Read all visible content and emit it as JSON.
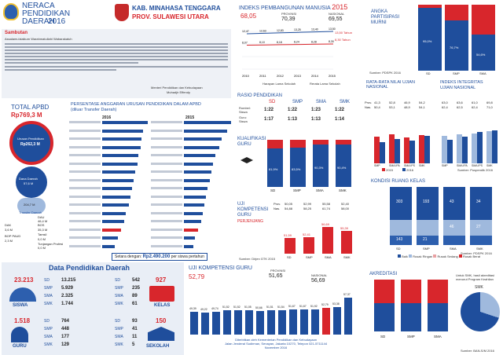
{
  "header": {
    "title_l1": "NERACA",
    "title_l2": "PENDIDIKAN",
    "title_l3": "DAERAH",
    "year": "2016",
    "region_l1": "KAB. MINAHASA TENGGARA",
    "region_l2": "PROV. SULAWESI UTARA"
  },
  "sambutan": {
    "title": "Sambutan",
    "greeting": "Assalamu'alaikum Warahmatullahi Wabarakatuh",
    "sign1": "Menteri Pendidikan dan Kebudayaan",
    "sign2": "Muhadjir Effendy"
  },
  "ipm": {
    "title": "INDEKS PEMBANGUNAN MANUSIA",
    "year": "2015",
    "kab": "68,05",
    "prov_label": "PROVINSI",
    "prov": "70,39",
    "nas_label": "NASIONAL",
    "nas": "69,55",
    "hls": "13,50 Tahun",
    "rls": "8,30 Tahun",
    "years": [
      "2010",
      "2011",
      "2012",
      "2013",
      "2014",
      "2015"
    ],
    "top": [
      "12,47",
      "12,63",
      "12,83",
      "13,25",
      "13,40",
      "13,50"
    ],
    "bot": [
      "8,07",
      "8,10",
      "8,18",
      "8,24",
      "8,28",
      "8,30"
    ],
    "leg1": "Harapan Lama Sekolah",
    "leg2": "Rerata Lama Sekolah"
  },
  "apm": {
    "title_l1": "ANGKA",
    "title_l2": "PARTISIPASI",
    "title_l3": "MURNI",
    "levels": [
      "SD",
      "SMP",
      "SMA"
    ],
    "vals": [
      "95,0%",
      "76,7%",
      "54,6%"
    ],
    "fill": [
      0.95,
      0.767,
      0.546
    ],
    "source": "Sumber: PDSPK 2016"
  },
  "apbd": {
    "title": "TOTAL APBD",
    "amount": "Rp769,3 M",
    "urusan_label": "Urusan Pendidikan",
    "urusan": "Rp262,3 M",
    "dana_daerah_label": "Dana Daerah",
    "dana_daerah": "57,6 M",
    "transfer_label": "Transfer Daerah",
    "transfer": "204,7 M",
    "rows": [
      [
        "DAU",
        "46,4 M"
      ],
      [
        "DAK",
        "3,6 M"
      ],
      [
        "BOP PAUD",
        "2,3 M"
      ],
      [
        "BOS",
        "35,3 M"
      ],
      [
        "Tamsil",
        "0,0 M"
      ],
      [
        "Tunjangan Profesi",
        "0,0 M"
      ]
    ]
  },
  "persentase": {
    "title_l1": "PERSENTASE ANGGARAN URUSAN PENDIDIKAN DALAM APBD",
    "title_l2": "(diluar Transfer Daerah)",
    "year_l": "2016",
    "year_r": "2015",
    "footer": "Setara dengan:",
    "footer_amount": "Rp2.490.200",
    "footer_per": "per siswa pertahun",
    "bars_l": [
      0.58,
      0.52,
      0.5,
      0.49,
      0.46,
      0.45,
      0.42,
      0.4,
      0.38,
      0.36,
      0.34,
      0.3,
      0.28,
      0.24,
      0.2,
      0.16
    ],
    "bars_r": [
      0.6,
      0.55,
      0.48,
      0.45,
      0.4,
      0.37,
      0.35,
      0.33,
      0.3,
      0.28,
      0.26,
      0.24,
      0.22,
      0.18,
      0.14,
      0.12
    ],
    "hl_l": 13,
    "hl_r": 13
  },
  "rasio": {
    "title": "RASIO PENDIDIKAN",
    "r1": "Rombel:",
    "r1b": "Siswa",
    "r2": "Guru:",
    "r2b": "Siswa",
    "cols": [
      "SD",
      "SMP",
      "SMA",
      "SMK"
    ],
    "row1": [
      "1:22",
      "1:22",
      "1:23",
      "1:22"
    ],
    "row2": [
      "1:17",
      "1:13",
      "1:13",
      "1:14"
    ]
  },
  "un": {
    "title": "RATA-RATA NILAI UJIAN NASIONAL",
    "cols": [
      "SMP",
      "SMA IPA",
      "SMA IPS",
      "SMK"
    ],
    "prov_label": "Prov.",
    "nas_label": "Nas.",
    "prov": [
      "41,3",
      "52,8",
      "46,9",
      "54,2"
    ],
    "nas": [
      "50,4",
      "53,1",
      "48,9",
      "54,1"
    ],
    "v2015": [
      0.57,
      0.62,
      0.55,
      0.6
    ],
    "v2016": [
      0.45,
      0.52,
      0.48,
      0.58
    ],
    "leg1": "2015",
    "leg2": "2016"
  },
  "iiun": {
    "title_l1": "INDEKS INTEGRITAS",
    "title_l2": "UJIAN NASIONAL",
    "cols": [
      "SMP",
      "SMA IPA",
      "SMA IPS",
      "SMK"
    ],
    "prov": [
      "63,0",
      "63,6",
      "61,0",
      "69,8"
    ],
    "nas": [
      "62,4",
      "62,5",
      "62,4",
      "71,0"
    ],
    "v2015": [
      0.58,
      0.62,
      0.64,
      0.68
    ],
    "v2016": [
      0.5,
      0.56,
      0.66,
      0.7
    ],
    "source": "Sumber: Puspendik 2016"
  },
  "kualifikasi": {
    "title_l1": "KUALIFIKASI",
    "title_l2": "GURU",
    "cols": [
      "SD",
      "SMP",
      "SMA",
      "SMK"
    ],
    "vals": [
      "81,9%",
      "83,5%",
      "90,3%",
      "90,4%"
    ],
    "fill": [
      0.819,
      0.835,
      0.903,
      0.904
    ]
  },
  "ukg": {
    "title_l1": "UJI",
    "title_l2": "KOMPETENSI",
    "title_l3": "GURU",
    "sub": "PERJENJANG",
    "cols": [
      "SD",
      "SMP",
      "SMA",
      "SMK"
    ],
    "prov": [
      "50,05",
      "52,99",
      "55,58",
      "52,40"
    ],
    "nas": [
      "54,88",
      "58,25",
      "61,74",
      "58,00"
    ],
    "vals": [
      "51,59",
      "52,41",
      "56,69",
      "55,39"
    ],
    "norm": [
      0.47,
      0.5,
      0.82,
      0.7
    ],
    "source": "Sumber: Dirjen GTK 2015"
  },
  "ruang": {
    "title": "KONDISI RUANG KELAS",
    "cols": [
      "SD",
      "SMP",
      "SMA",
      "SMK"
    ],
    "top": [
      "303",
      "193",
      "43",
      "34"
    ],
    "mid": [
      "",
      "",
      "46",
      "27"
    ],
    "bot": [
      "143",
      "21",
      "",
      ""
    ],
    "source": "Sumber: PDSPK 2016",
    "leg": [
      "Baik",
      "Rusak Ringan",
      "Rusak Sedang",
      "Rusak Berat"
    ]
  },
  "pendidikan": {
    "title": "Data Pendidikan Daerah",
    "siswa_total": "23.213",
    "siswa_label": "SISWA",
    "siswa": [
      [
        "SD",
        "13.215"
      ],
      [
        "SMP",
        "5.929"
      ],
      [
        "SMA",
        "2.325"
      ],
      [
        "SMK",
        "1.744"
      ]
    ],
    "kelas_total": "927",
    "kelas_label": "KELAS",
    "kelas": [
      [
        "SD",
        "542"
      ],
      [
        "SMP",
        "235"
      ],
      [
        "SMA",
        "89"
      ],
      [
        "SMK",
        "61"
      ]
    ],
    "guru_total": "1.518",
    "guru_label": "GURU",
    "guru": [
      [
        "SD",
        "764"
      ],
      [
        "SMP",
        "448"
      ],
      [
        "SMA",
        "177"
      ],
      [
        "SMK",
        "129"
      ]
    ],
    "sekolah_total": "150",
    "sekolah_label": "SEKOLAH",
    "sekolah": [
      [
        "SD",
        "93"
      ],
      [
        "SMP",
        "41"
      ],
      [
        "SMA",
        "11"
      ],
      [
        "SMK",
        "5"
      ]
    ]
  },
  "ukg2": {
    "title": "UJI KOMPETENSI GURU",
    "kab": "52,79",
    "prov_label": "PROVINSI",
    "prov": "51,65",
    "nas_label": "NASIONAL",
    "nas": "56,69",
    "vals": [
      "49,39",
      "49,22",
      "49,74",
      "51,52",
      "51,52",
      "51,05",
      "50,66",
      "51,51",
      "51,54",
      "51,67",
      "51,67",
      "51,92",
      "52,79",
      "53,38",
      "57,37"
    ],
    "norm": [
      0.48,
      0.47,
      0.49,
      0.52,
      0.52,
      0.51,
      0.5,
      0.52,
      0.52,
      0.53,
      0.53,
      0.54,
      0.56,
      0.58,
      0.78
    ],
    "hl": 12,
    "footer1": "Diterbitkan oleh Kementerian Pendidikan dan Kebudayaan",
    "footer2": "Jalan Jenderal Sudirman, Senayan, Jakarta 10270, Telepon 021-5711144",
    "footer3": "November 2016"
  },
  "akreditasi": {
    "title": "AKREDITASI",
    "cols": [
      "SD",
      "SMP",
      "SMA"
    ],
    "note": "Untuk SMK, hasil akreditasi menurut Program Keahlian",
    "smk": "SMK",
    "source": "Sumber: BAN-S/M 2016"
  },
  "colors": {
    "blue": "#1f4e9c",
    "red": "#d8262c",
    "lightblue": "#9fb9dd",
    "grey": "#dde2ea"
  }
}
